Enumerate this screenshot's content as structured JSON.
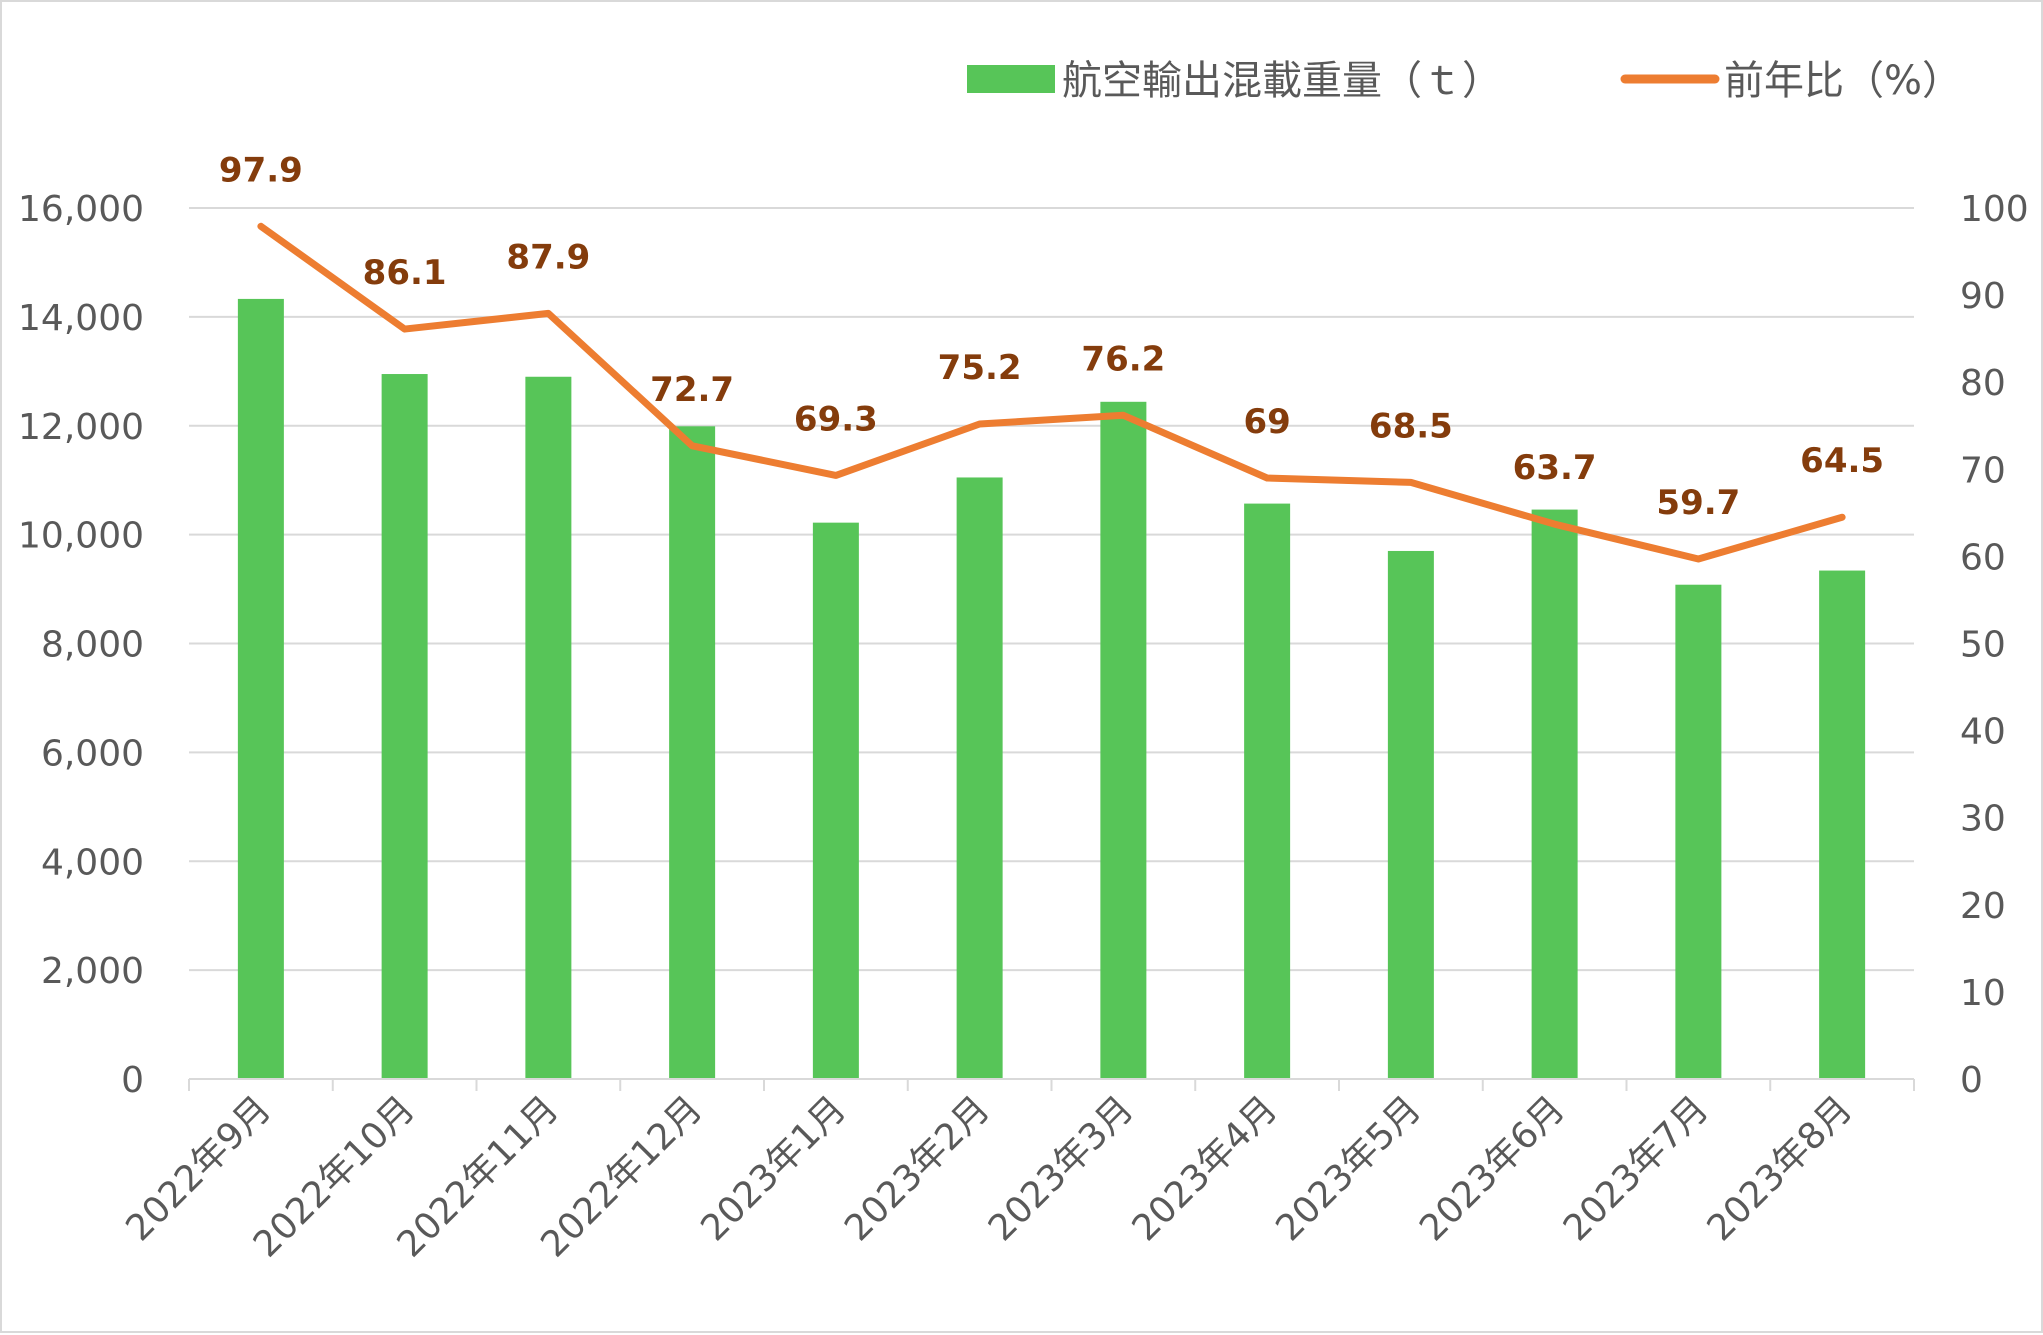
{
  "chart_data": {
    "type": "bar",
    "categories": [
      "2022年9月",
      "2022年10月",
      "2022年11月",
      "2022年12月",
      "2023年1月",
      "2023年2月",
      "2023年3月",
      "2023年4月",
      "2023年5月",
      "2023年6月",
      "2023年7月",
      "2023年8月"
    ],
    "series": [
      {
        "name": "航空輸出混載重量（ｔ）",
        "type": "bar",
        "axis": "left",
        "color": "#57c558",
        "values": [
          14330,
          12950,
          12900,
          11990,
          10220,
          11050,
          12440,
          10570,
          9700,
          10460,
          9080,
          9340
        ]
      },
      {
        "name": "前年比（%）",
        "type": "line",
        "axis": "right",
        "color": "#ed7d31",
        "values": [
          97.9,
          86.1,
          87.9,
          72.7,
          69.3,
          75.2,
          76.2,
          69,
          68.5,
          63.7,
          59.7,
          64.5
        ],
        "data_labels": [
          "97.9",
          "86.1",
          "87.9",
          "72.7",
          "69.3",
          "75.2",
          "76.2",
          "69",
          "68.5",
          "63.7",
          "59.7",
          "64.5"
        ],
        "label_color": "#843c0c"
      }
    ],
    "y_left": {
      "ylim": [
        0,
        16000
      ],
      "ticks": [
        "0",
        "2,000",
        "4,000",
        "6,000",
        "8,000",
        "10,000",
        "12,000",
        "14,000",
        "16,000"
      ]
    },
    "y_right": {
      "ylim": [
        0,
        100
      ],
      "ticks": [
        "0",
        "10",
        "20",
        "30",
        "40",
        "50",
        "60",
        "70",
        "80",
        "90",
        "100"
      ]
    },
    "title": "",
    "xlabel": "",
    "ylabel": "",
    "legend_position": "top-right",
    "grid": true
  }
}
